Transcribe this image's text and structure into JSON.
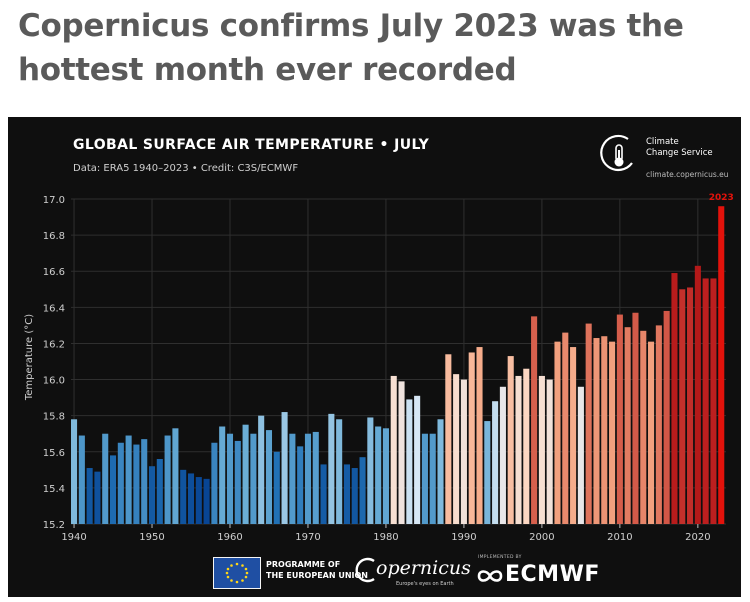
{
  "article": {
    "headline": "Copernicus confirms July 2023 was the hottest month ever recorded"
  },
  "chart_data": {
    "type": "bar",
    "title": "GLOBAL SURFACE AIR TEMPERATURE • JULY",
    "subtitle": "Data: ERA5 1940–2023 • Credit: C3S/ECMWF",
    "xlabel": "",
    "ylabel": "Temperature (°C)",
    "ylim": [
      15.2,
      17.0
    ],
    "yticks": [
      "15.2",
      "15.4",
      "15.6",
      "15.8",
      "16.0",
      "16.2",
      "16.4",
      "16.6",
      "16.8",
      "17.0"
    ],
    "xticks": [
      "1940",
      "1950",
      "1960",
      "1970",
      "1980",
      "1990",
      "2000",
      "2010",
      "2020"
    ],
    "grid": true,
    "highlight_label": "2023",
    "highlight_color": "#e3120b",
    "background_color": "#0f0f0f",
    "x": [
      1940,
      1941,
      1942,
      1943,
      1944,
      1945,
      1946,
      1947,
      1948,
      1949,
      1950,
      1951,
      1952,
      1953,
      1954,
      1955,
      1956,
      1957,
      1958,
      1959,
      1960,
      1961,
      1962,
      1963,
      1964,
      1965,
      1966,
      1967,
      1968,
      1969,
      1970,
      1971,
      1972,
      1973,
      1974,
      1975,
      1976,
      1977,
      1978,
      1979,
      1980,
      1981,
      1982,
      1983,
      1984,
      1985,
      1986,
      1987,
      1988,
      1989,
      1990,
      1991,
      1992,
      1993,
      1994,
      1995,
      1996,
      1997,
      1998,
      1999,
      2000,
      2001,
      2002,
      2003,
      2004,
      2005,
      2006,
      2007,
      2008,
      2009,
      2010,
      2011,
      2012,
      2013,
      2014,
      2015,
      2016,
      2017,
      2018,
      2019,
      2020,
      2021,
      2022,
      2023
    ],
    "values": [
      15.78,
      15.69,
      15.51,
      15.49,
      15.7,
      15.58,
      15.65,
      15.69,
      15.64,
      15.67,
      15.52,
      15.56,
      15.69,
      15.73,
      15.5,
      15.48,
      15.46,
      15.45,
      15.65,
      15.74,
      15.7,
      15.66,
      15.75,
      15.7,
      15.8,
      15.72,
      15.6,
      15.82,
      15.7,
      15.63,
      15.7,
      15.71,
      15.53,
      15.81,
      15.78,
      15.53,
      15.51,
      15.57,
      15.79,
      15.74,
      15.73,
      16.02,
      15.99,
      15.89,
      15.91,
      15.7,
      15.7,
      15.78,
      16.14,
      16.03,
      16.0,
      16.15,
      16.18,
      15.77,
      15.88,
      15.96,
      16.13,
      16.02,
      16.06,
      16.35,
      16.02,
      16.0,
      16.21,
      16.26,
      16.18,
      15.96,
      16.31,
      16.23,
      16.24,
      16.21,
      16.36,
      16.29,
      16.37,
      16.27,
      16.21,
      16.3,
      16.38,
      16.59,
      16.5,
      16.51,
      16.63,
      16.56,
      16.56,
      16.96
    ]
  },
  "footer": {
    "eu_label_line1": "PROGRAMME OF",
    "eu_label_line2": "THE EUROPEAN UNION",
    "copernicus_logo": "opernicus",
    "copernicus_tagline": "Europe's eyes on Earth",
    "implemented_by": "IMPLEMENTED BY",
    "ecmwf_logo": "ECMWF"
  },
  "c3s_logo": {
    "name_line1": "Climate",
    "name_line2": "Change Service",
    "url": "climate.copernicus.eu"
  }
}
